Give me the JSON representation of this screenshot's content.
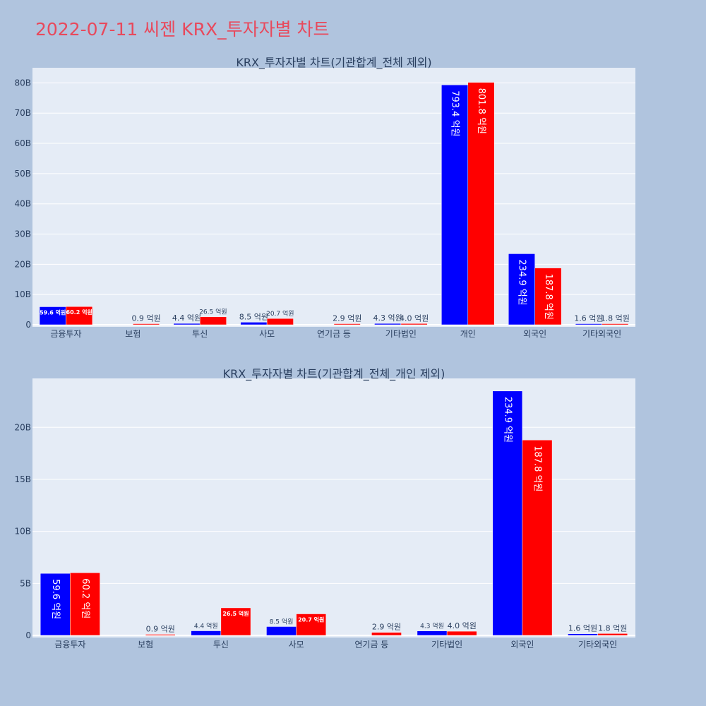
{
  "title": "2022-07-11 씨젠 KRX_투자자별 차트",
  "colors": {
    "page_bg": "#b0c4de",
    "plot_bg": "#e5ecf6",
    "title": "#e8495c",
    "series_buy": "#0000ff",
    "series_sell": "#ff0000",
    "text": "#2a3f5f"
  },
  "chart_data": [
    {
      "type": "bar",
      "title": "KRX_투자자별 차트(기관합계_전체 제외)",
      "categories": [
        "금융투자",
        "보험",
        "투신",
        "사모",
        "연기금 등",
        "기타법인",
        "개인",
        "외국인",
        "기타외국인"
      ],
      "series": [
        {
          "color": "#0000ff",
          "values": [
            5960000000.0,
            0,
            440000000.0,
            850000000.0,
            0,
            430000000.0,
            79340000000.0,
            23490000000.0,
            160000000.0
          ],
          "labels": [
            "59.6 억원",
            "",
            "4.4 억원",
            "8.5 억원",
            "",
            "4.3 억원",
            "793.4 억원",
            "234.9 억원",
            "1.6 억원"
          ]
        },
        {
          "color": "#ff0000",
          "values": [
            6020000000.0,
            90000000.0,
            2650000000.0,
            2070000000.0,
            290000000.0,
            400000000.0,
            80180000000.0,
            18780000000.0,
            180000000.0
          ],
          "labels": [
            "60.2 억원",
            "0.9 억원",
            "26.5 억원",
            "20.7 억원",
            "2.9 억원",
            "4.0 억원",
            "801.8 억원",
            "187.8 억원",
            "1.8 억원"
          ]
        }
      ],
      "ylim": [
        0,
        85000000000.0
      ],
      "yticks": [
        0,
        10000000000.0,
        20000000000.0,
        30000000000.0,
        40000000000.0,
        50000000000.0,
        60000000000.0,
        70000000000.0,
        80000000000.0
      ],
      "ytick_labels": [
        "0",
        "10B",
        "20B",
        "30B",
        "40B",
        "50B",
        "60B",
        "70B",
        "80B"
      ],
      "grid": true,
      "legend": "none"
    },
    {
      "type": "bar",
      "title": "KRX_투자자별 차트(기관합계_전체_개인 제외)",
      "categories": [
        "금융투자",
        "보험",
        "투신",
        "사모",
        "연기금 등",
        "기타법인",
        "외국인",
        "기타외국인"
      ],
      "series": [
        {
          "color": "#0000ff",
          "values": [
            5960000000.0,
            0,
            440000000.0,
            850000000.0,
            0,
            430000000.0,
            23490000000.0,
            160000000.0
          ],
          "labels": [
            "59.6 억원",
            "",
            "4.4 억원",
            "8.5 억원",
            "",
            "4.3 억원",
            "234.9 억원",
            "1.6 억원"
          ]
        },
        {
          "color": "#ff0000",
          "values": [
            6020000000.0,
            90000000.0,
            2650000000.0,
            2070000000.0,
            290000000.0,
            400000000.0,
            18780000000.0,
            180000000.0
          ],
          "labels": [
            "60.2 억원",
            "0.9 억원",
            "26.5 억원",
            "20.7 억원",
            "2.9 억원",
            "4.0 억원",
            "187.8 억원",
            "1.8 억원"
          ]
        }
      ],
      "ylim": [
        0,
        24700000000.0
      ],
      "yticks": [
        0,
        5000000000.0,
        10000000000.0,
        15000000000.0,
        20000000000.0
      ],
      "ytick_labels": [
        "0",
        "5B",
        "10B",
        "15B",
        "20B"
      ],
      "grid": true,
      "legend": "none"
    }
  ]
}
